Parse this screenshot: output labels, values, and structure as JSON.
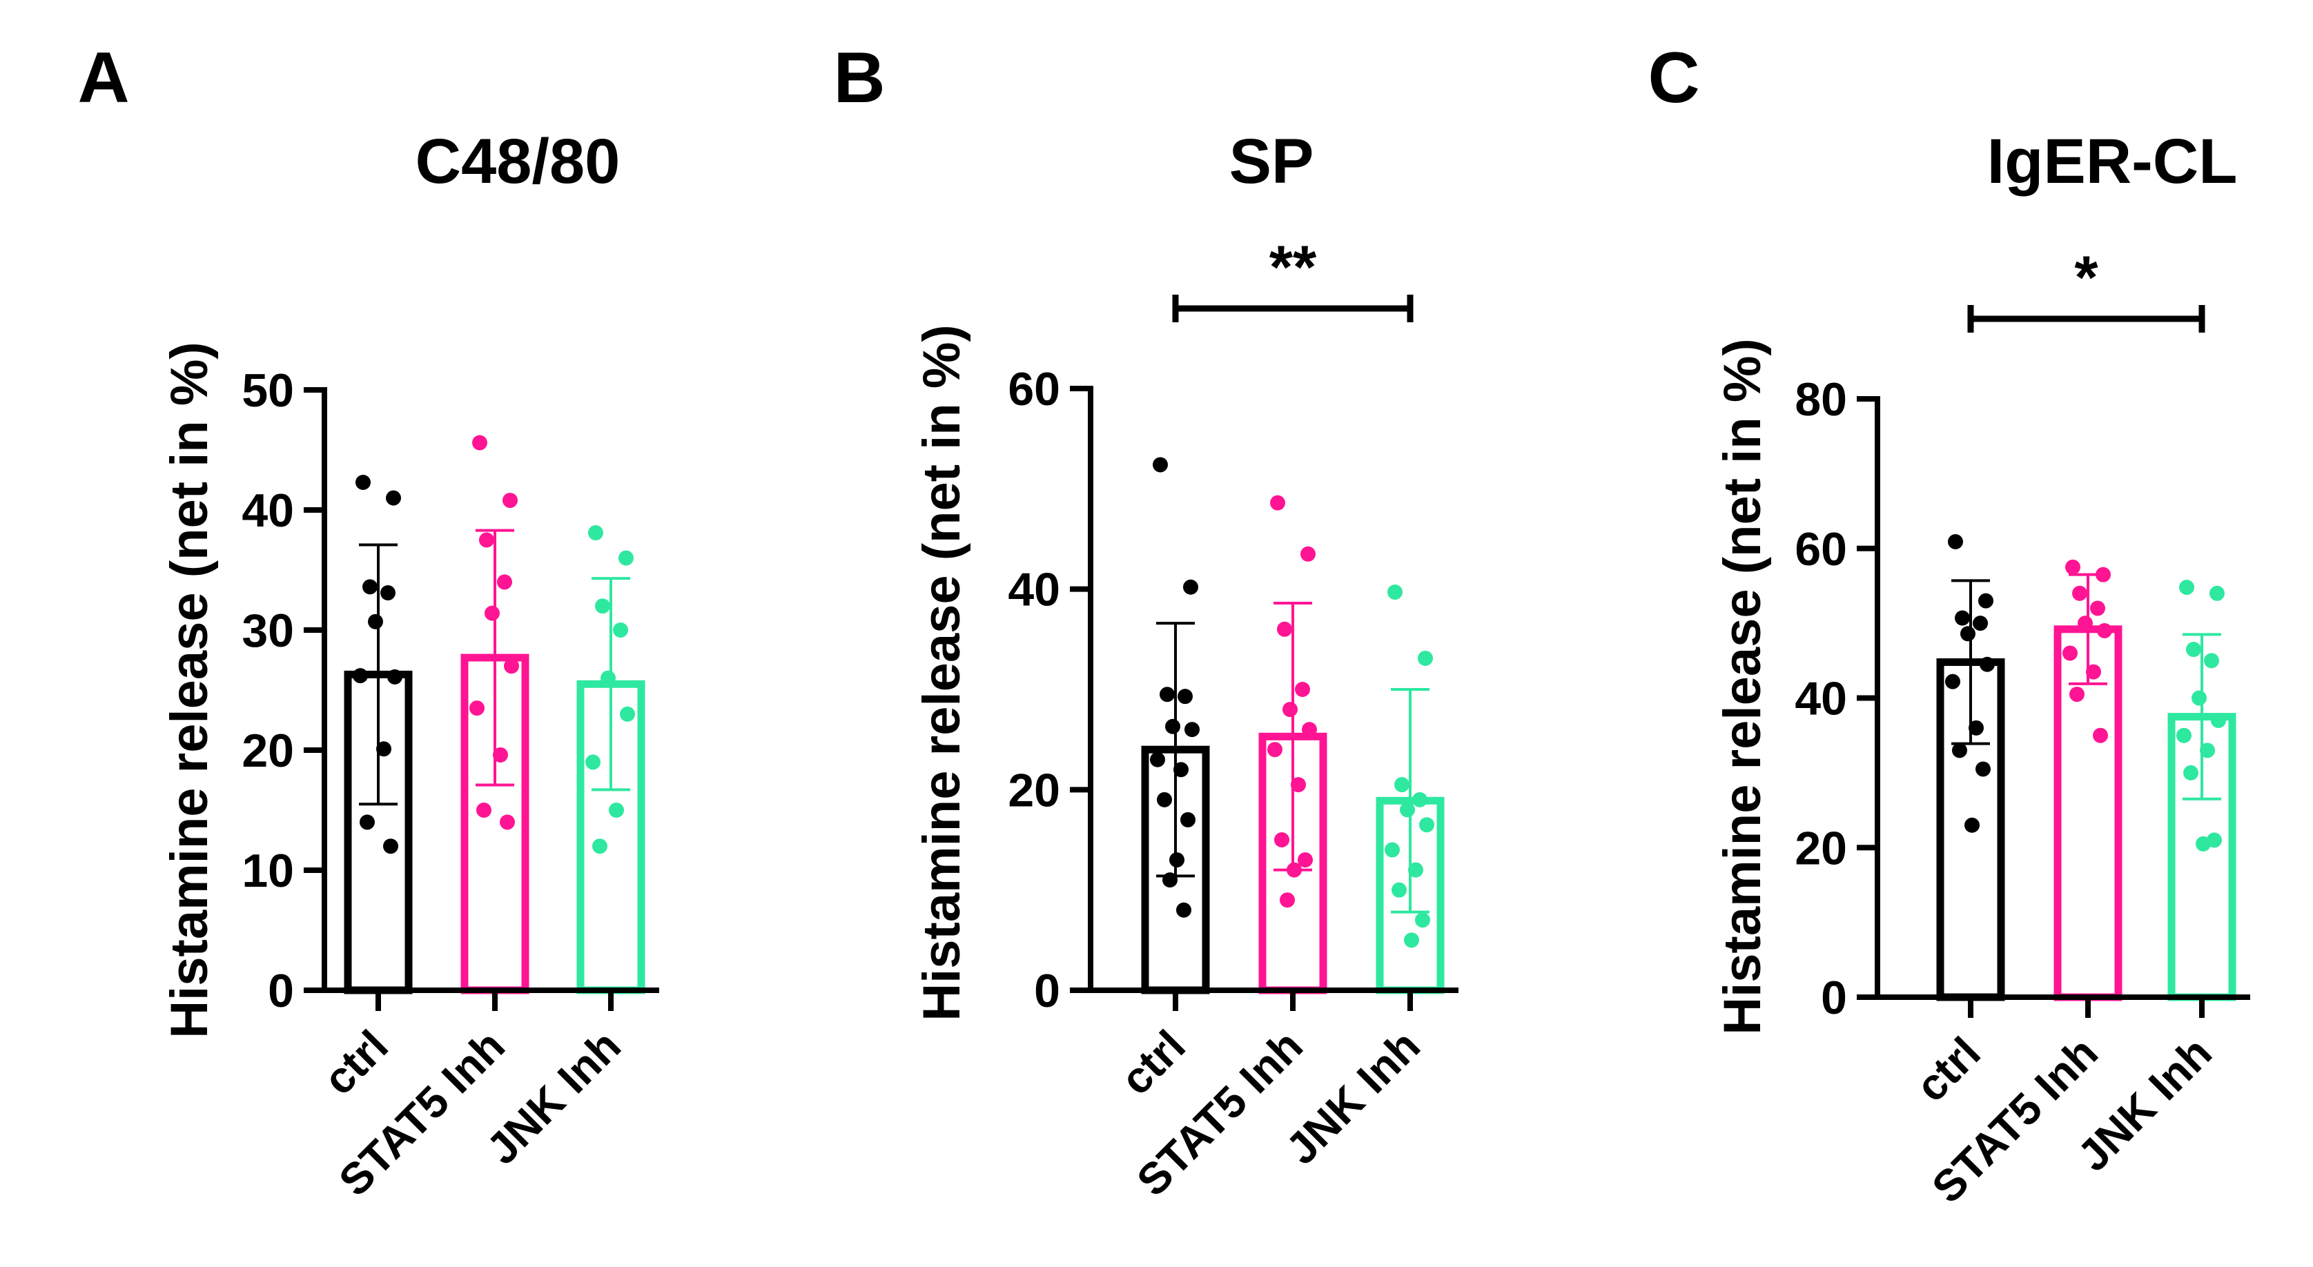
{
  "figure": {
    "y_axis_label": "Histamine release (net in %)"
  },
  "chart_data": [
    {
      "type": "bar",
      "panel": "A",
      "title": "C48/80",
      "ylabel": "Histamine release (net in %)",
      "xlabel": "",
      "ylim": [
        0,
        50
      ],
      "yticks": [
        0,
        10,
        20,
        30,
        40,
        50
      ],
      "categories": [
        "ctrl",
        "STAT5 Inh",
        "JNK Inh"
      ],
      "colors": [
        "#000000",
        "#ff1493",
        "#2ee8a0"
      ],
      "means": [
        26.3,
        27.7,
        25.5
      ],
      "sd": [
        10.8,
        10.6,
        8.8
      ],
      "points": [
        [
          42.3,
          41.0,
          33.6,
          33.1,
          30.7,
          26.1,
          26.2,
          20.1,
          14.0,
          12.0
        ],
        [
          45.6,
          40.8,
          37.5,
          34.0,
          31.4,
          27.0,
          23.5,
          19.6,
          15.0,
          14.0
        ],
        [
          38.1,
          36.0,
          32.0,
          30.0,
          26.0,
          23.0,
          19.0,
          15.0,
          12.0
        ]
      ],
      "significance": null
    },
    {
      "type": "bar",
      "panel": "B",
      "title": "SP",
      "ylabel": "Histamine release (net in %)",
      "xlabel": "",
      "ylim": [
        0,
        60
      ],
      "yticks": [
        0,
        20,
        40,
        60
      ],
      "categories": [
        "ctrl",
        "STAT5 Inh",
        "JNK Inh"
      ],
      "colors": [
        "#000000",
        "#ff1493",
        "#2ee8a0"
      ],
      "means": [
        24.0,
        25.3,
        18.9
      ],
      "sd": [
        12.6,
        13.3,
        11.1
      ],
      "points": [
        [
          52.4,
          40.2,
          29.5,
          29.3,
          26.3,
          26.0,
          23.0,
          22.0,
          19.0,
          17.0,
          13.0,
          11.0,
          8.0
        ],
        [
          48.6,
          43.5,
          36.0,
          30.0,
          28.0,
          26.0,
          24.0,
          20.5,
          15.0,
          13.0,
          12.0,
          9.0
        ],
        [
          39.7,
          33.1,
          20.5,
          19.0,
          18.0,
          16.5,
          14.0,
          12.0,
          10.0,
          7.0,
          5.0
        ]
      ],
      "significance": {
        "from": "ctrl",
        "to": "JNK Inh",
        "label": "**"
      }
    },
    {
      "type": "bar",
      "panel": "C",
      "title": "IgER-CL",
      "ylabel": "Histamine release (net in %)",
      "xlabel": "",
      "ylim": [
        0,
        80
      ],
      "yticks": [
        0,
        20,
        40,
        60,
        80
      ],
      "categories": [
        "ctrl",
        "STAT5 Inh",
        "JNK Inh"
      ],
      "colors": [
        "#000000",
        "#ff1493",
        "#2ee8a0"
      ],
      "means": [
        44.8,
        49.2,
        37.5
      ],
      "sd": [
        10.9,
        7.3,
        11.0
      ],
      "points": [
        [
          60.9,
          53.0,
          50.7,
          50.0,
          48.6,
          44.5,
          42.2,
          36.0,
          33.0,
          30.5,
          23.0
        ],
        [
          57.5,
          56.5,
          54.0,
          52.0,
          50.0,
          49.0,
          46.0,
          43.5,
          40.5,
          35.0
        ],
        [
          54.8,
          54.0,
          46.5,
          45.0,
          40.0,
          37.0,
          35.0,
          33.0,
          30.0,
          21.0,
          20.5
        ]
      ],
      "significance": {
        "from": "ctrl",
        "to": "JNK Inh",
        "label": "*"
      }
    }
  ]
}
